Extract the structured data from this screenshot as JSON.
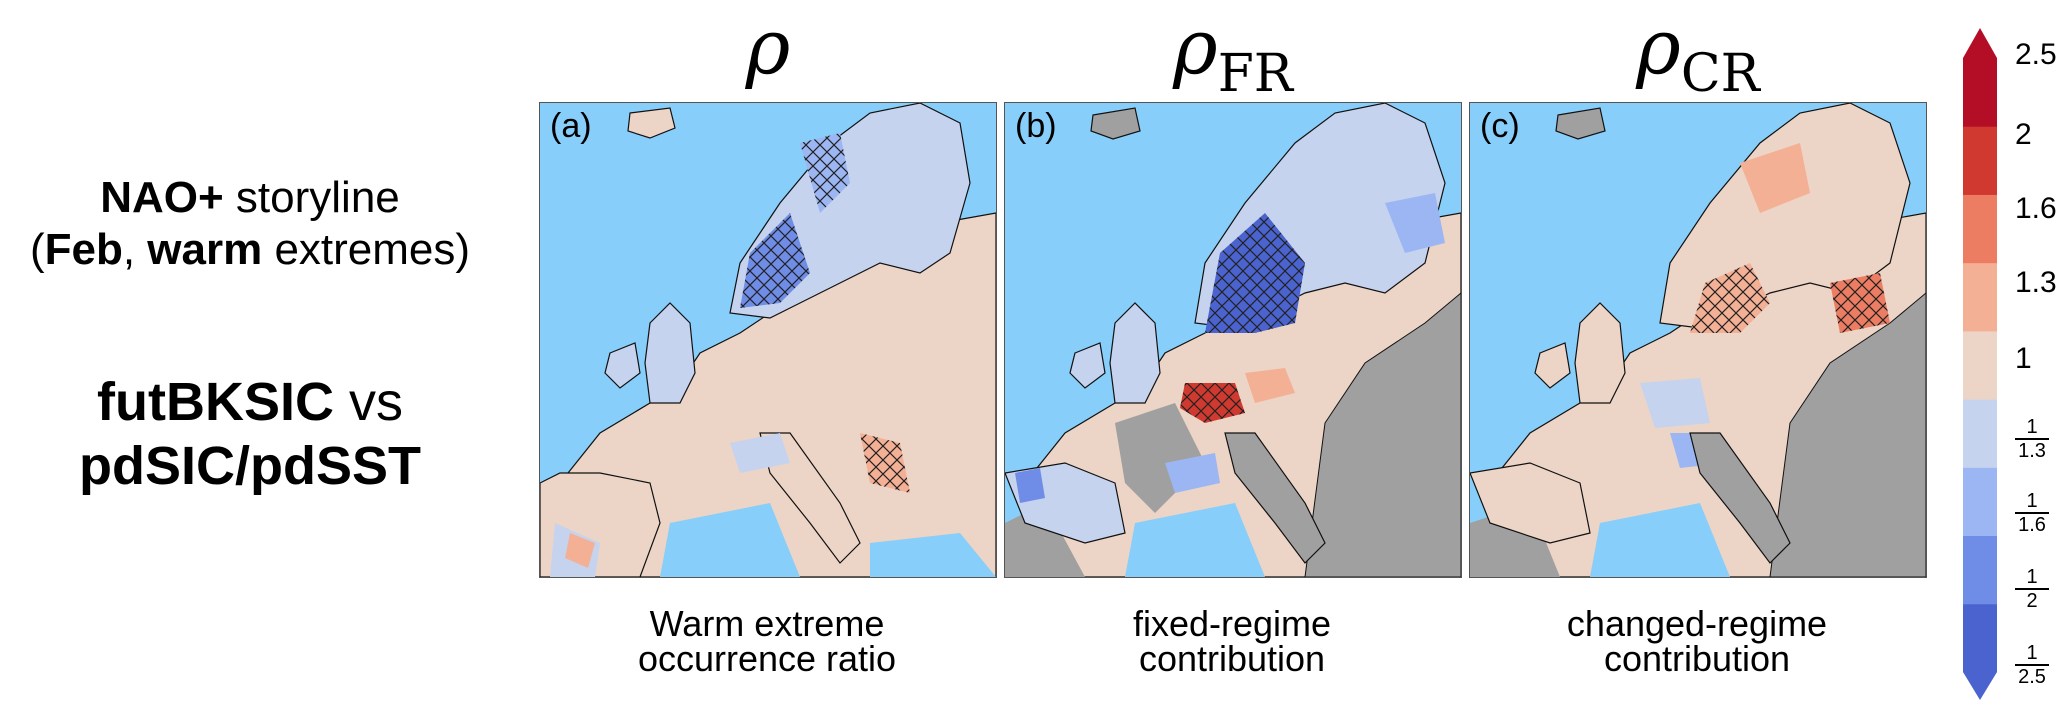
{
  "left": {
    "story_bold": "NAO+",
    "story_rest": " storyline",
    "story2_open": "(",
    "story2_feb": "Feb",
    "story2_comma": ", ",
    "story2_warm": "warm",
    "story2_rest": " extremes)",
    "comp_a": "futBKSIC",
    "comp_vs": " vs",
    "comp_b": "pdSIC/pdSST"
  },
  "columns": [
    {
      "title_symbol": "ρ",
      "title_sub": "",
      "label": "(a)",
      "caption_line1": "Warm extreme",
      "caption_line2": "occurrence ratio"
    },
    {
      "title_symbol": "ρ",
      "title_sub": "FR",
      "label": "(b)",
      "caption_line1": "fixed-regime",
      "caption_line2": "contribution"
    },
    {
      "title_symbol": "ρ",
      "title_sub": "CR",
      "label": "(c)",
      "caption_line1": "changed-regime",
      "caption_line2": "contribution"
    }
  ],
  "colorbar": {
    "colors": [
      "#4a63cf",
      "#6f8ce6",
      "#9bb6f3",
      "#c6d3ee",
      "#ecd4c6",
      "#f4b095",
      "#ec7d62",
      "#d0392f",
      "#b40e26"
    ],
    "labels": [
      "2.5",
      "2",
      "1.6",
      "1.3",
      "1"
    ],
    "fractions": [
      {
        "num": "1",
        "den": "1.3"
      },
      {
        "num": "1",
        "den": "1.6"
      },
      {
        "num": "1",
        "den": "2"
      },
      {
        "num": "1",
        "den": "2.5"
      }
    ]
  },
  "map_colors": {
    "sea": "#87cefa",
    "masked": "#a0a0a0",
    "neutral_pos": "#ecd4c6",
    "neutral_neg": "#c6d3ee"
  }
}
